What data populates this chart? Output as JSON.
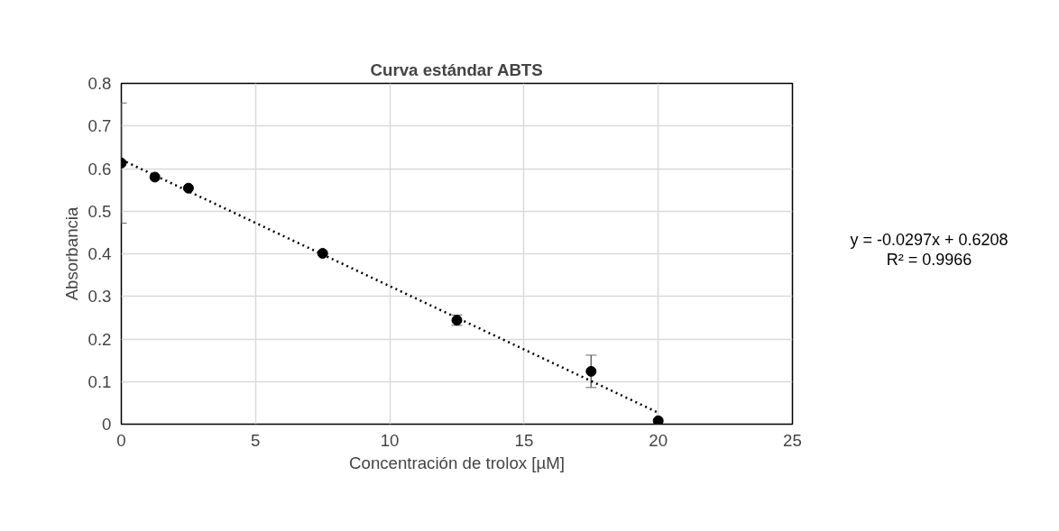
{
  "chart_data": {
    "type": "scatter",
    "title": "Curva estándar ABTS",
    "xlabel": "Concentración de trolox [µM]",
    "ylabel": "Absorbancia",
    "xlim": [
      0,
      25
    ],
    "xticks": [
      0,
      5,
      10,
      15,
      20,
      25
    ],
    "ylim": [
      0,
      0.8
    ],
    "yticks": [
      {
        "value": 0,
        "label": "0"
      },
      0.1,
      0.2,
      0.3,
      0.4,
      0.5,
      0.6,
      0.7,
      0.8
    ],
    "grid": true,
    "marker": "circle",
    "series": [
      {
        "color": "#000000",
        "x": [
          0,
          1.25,
          2.5,
          7.5,
          12.5,
          17.5,
          20
        ],
        "values": [
          0.613,
          0.58,
          0.554,
          0.401,
          0.244,
          0.124,
          0.008
        ],
        "errors": [
          0.141,
          null,
          null,
          null,
          0.012,
          0.038,
          null
        ]
      },
      {
        "type": "line",
        "color": "#000000",
        "line_style": "dotted",
        "marker": "none",
        "x": [
          0,
          20
        ],
        "values": [
          0.621,
          0.027
        ]
      }
    ],
    "annotations": [
      "y = -0.0297x + 0.6208",
      "R² = 0.9966"
    ]
  }
}
